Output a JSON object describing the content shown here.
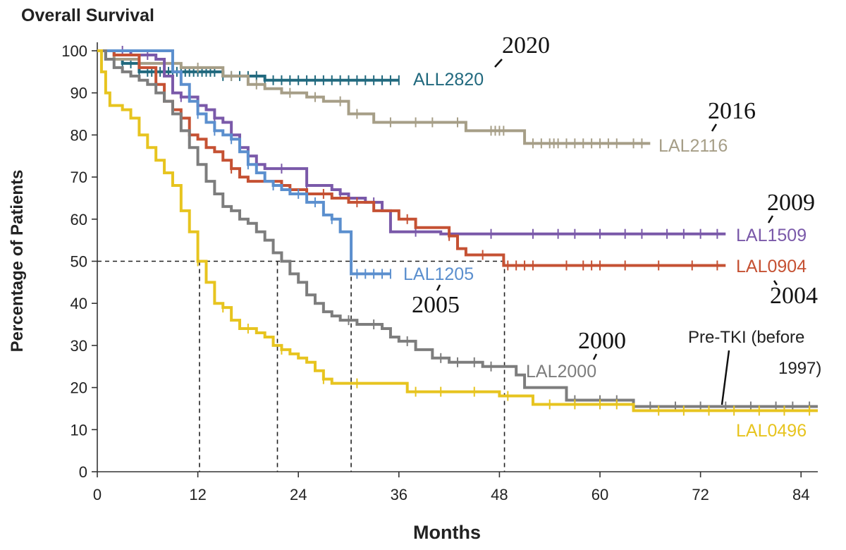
{
  "chart_data": {
    "type": "line",
    "title": "Overall Survival",
    "xlabel": "Months",
    "ylabel": "Percentage of Patients",
    "xlim": [
      0,
      86
    ],
    "ylim": [
      0,
      100
    ],
    "xticks": [
      0,
      12,
      24,
      36,
      48,
      60,
      72,
      84
    ],
    "yticks": [
      0,
      10,
      20,
      30,
      40,
      50,
      60,
      70,
      80,
      90,
      100
    ],
    "median_reference_line": {
      "y": 50,
      "x_values": [
        12.2,
        21.5,
        30.3,
        48.6
      ]
    },
    "series": [
      {
        "name": "ALL2820",
        "year_label": "2020",
        "color": "#21697e",
        "points": [
          [
            0,
            100
          ],
          [
            1,
            98
          ],
          [
            3,
            97
          ],
          [
            5,
            95
          ],
          [
            10,
            95
          ],
          [
            15,
            94
          ],
          [
            20,
            93
          ],
          [
            36,
            93
          ]
        ],
        "censor_x": [
          2,
          3,
          4,
          5,
          6,
          6.5,
          7,
          7.5,
          8,
          8.5,
          9,
          9.5,
          10,
          10.5,
          11,
          11.5,
          12,
          12.5,
          13,
          13.5,
          14,
          15,
          16,
          17,
          18,
          19,
          20,
          21,
          22,
          23,
          24,
          25,
          26,
          27,
          28,
          29,
          30,
          31,
          32,
          33,
          34,
          35,
          36
        ]
      },
      {
        "name": "LAL2116",
        "year_label": "2016",
        "color": "#a69e87",
        "points": [
          [
            0,
            100
          ],
          [
            2,
            98
          ],
          [
            5,
            97
          ],
          [
            10,
            96
          ],
          [
            15,
            94
          ],
          [
            18,
            92
          ],
          [
            20,
            91
          ],
          [
            22,
            90
          ],
          [
            25,
            89
          ],
          [
            27,
            88
          ],
          [
            30,
            85
          ],
          [
            33,
            85
          ],
          [
            33,
            83
          ],
          [
            44,
            83
          ],
          [
            44,
            81
          ],
          [
            51,
            81
          ],
          [
            51,
            78
          ],
          [
            66,
            78
          ]
        ],
        "censor_x": [
          5,
          8,
          12,
          16,
          19,
          23,
          26,
          29,
          31,
          35,
          38,
          40,
          43,
          47,
          47.5,
          48,
          48.5,
          52,
          53,
          54,
          54.5,
          55,
          56,
          57,
          58,
          59,
          60,
          61,
          62,
          64,
          65
        ]
      },
      {
        "name": "LAL1509",
        "year_label": "2009",
        "color": "#7a59a9",
        "points": [
          [
            0,
            100
          ],
          [
            2,
            100
          ],
          [
            4,
            99
          ],
          [
            7,
            98
          ],
          [
            8,
            94
          ],
          [
            9,
            90
          ],
          [
            10,
            89
          ],
          [
            12,
            87
          ],
          [
            13,
            86
          ],
          [
            14,
            84
          ],
          [
            15,
            83
          ],
          [
            16,
            80
          ],
          [
            17,
            77
          ],
          [
            18,
            75
          ],
          [
            19,
            73
          ],
          [
            20,
            72
          ],
          [
            24,
            72
          ],
          [
            25,
            68
          ],
          [
            28,
            67
          ],
          [
            29,
            66
          ],
          [
            30,
            65
          ],
          [
            32,
            64
          ],
          [
            34,
            62
          ],
          [
            35,
            57
          ],
          [
            41,
            57
          ],
          [
            41,
            56.5
          ],
          [
            75,
            56.5
          ]
        ],
        "censor_x": [
          3,
          6,
          10,
          14,
          18,
          22,
          25,
          29,
          33,
          38,
          42,
          47,
          52,
          55,
          57,
          60,
          63,
          65,
          68,
          70,
          72,
          74
        ]
      },
      {
        "name": "LAL0904",
        "year_label": "2004",
        "color": "#c55133",
        "points": [
          [
            0,
            100
          ],
          [
            2,
            99
          ],
          [
            5,
            96
          ],
          [
            7,
            92
          ],
          [
            8,
            88
          ],
          [
            9,
            86
          ],
          [
            10,
            84
          ],
          [
            11,
            80
          ],
          [
            12,
            79
          ],
          [
            13,
            77
          ],
          [
            14,
            76
          ],
          [
            15,
            74
          ],
          [
            16,
            72
          ],
          [
            17,
            70
          ],
          [
            18,
            69
          ],
          [
            21,
            69
          ],
          [
            22,
            68
          ],
          [
            23,
            67
          ],
          [
            25,
            66
          ],
          [
            28,
            65
          ],
          [
            30,
            64
          ],
          [
            33,
            62
          ],
          [
            36,
            60
          ],
          [
            38,
            58
          ],
          [
            42,
            56
          ],
          [
            43,
            53
          ],
          [
            44,
            51.5
          ],
          [
            48.5,
            51.5
          ],
          [
            48.5,
            49
          ],
          [
            75,
            49
          ]
        ],
        "censor_x": [
          11,
          16,
          23,
          27,
          31,
          37,
          42,
          46,
          49,
          50,
          51,
          52,
          56,
          58,
          59,
          60,
          63,
          67,
          71,
          74
        ]
      },
      {
        "name": "LAL1205",
        "year_label": "2005",
        "color": "#5b8fce",
        "points": [
          [
            0,
            100
          ],
          [
            1,
            100
          ],
          [
            8,
            100
          ],
          [
            9,
            95
          ],
          [
            10,
            92
          ],
          [
            11,
            88
          ],
          [
            12,
            85
          ],
          [
            13,
            83
          ],
          [
            14,
            81
          ],
          [
            15,
            80
          ],
          [
            16,
            79
          ],
          [
            17,
            76
          ],
          [
            18,
            73
          ],
          [
            19,
            71
          ],
          [
            20,
            69
          ],
          [
            21,
            68
          ],
          [
            22,
            67
          ],
          [
            23,
            66
          ],
          [
            25,
            64
          ],
          [
            27,
            61
          ],
          [
            28,
            60
          ],
          [
            29,
            57
          ],
          [
            30,
            57
          ],
          [
            30.3,
            47
          ],
          [
            35,
            47
          ]
        ],
        "censor_x": [
          12,
          14,
          16,
          18,
          21,
          24,
          26,
          28,
          31,
          32,
          33,
          34,
          35
        ]
      },
      {
        "name": "LAL2000",
        "year_label": "2000",
        "color": "#7d7d7d",
        "points": [
          [
            0,
            100
          ],
          [
            1,
            98
          ],
          [
            2,
            96
          ],
          [
            3,
            95
          ],
          [
            4,
            94
          ],
          [
            5,
            93
          ],
          [
            6,
            92
          ],
          [
            7,
            90
          ],
          [
            8,
            88
          ],
          [
            9,
            85
          ],
          [
            10,
            81
          ],
          [
            11,
            77
          ],
          [
            12,
            73
          ],
          [
            13,
            69
          ],
          [
            14,
            66
          ],
          [
            15,
            63
          ],
          [
            16,
            62
          ],
          [
            17,
            60
          ],
          [
            18,
            59
          ],
          [
            19,
            57
          ],
          [
            20,
            55
          ],
          [
            21,
            52
          ],
          [
            22,
            50
          ],
          [
            23,
            47
          ],
          [
            24,
            45
          ],
          [
            25,
            42
          ],
          [
            26,
            40
          ],
          [
            27,
            38
          ],
          [
            28,
            37
          ],
          [
            29,
            36
          ],
          [
            30,
            36
          ],
          [
            31,
            35
          ],
          [
            33,
            35
          ],
          [
            34,
            34
          ],
          [
            35,
            32
          ],
          [
            36,
            31
          ],
          [
            38,
            29
          ],
          [
            40,
            27
          ],
          [
            42,
            26
          ],
          [
            45,
            26
          ],
          [
            46,
            25
          ],
          [
            49,
            25
          ],
          [
            50,
            23
          ],
          [
            51,
            20
          ],
          [
            56,
            20
          ],
          [
            56,
            17
          ],
          [
            63,
            17
          ],
          [
            64,
            15.5
          ],
          [
            86,
            15.5
          ]
        ],
        "censor_x": [
          30,
          33,
          37,
          41,
          43,
          45,
          47,
          57,
          60,
          62,
          66,
          69,
          72,
          75,
          78,
          81,
          83,
          85
        ]
      },
      {
        "name": "LAL0496",
        "year_label": "Pre-TKI (before 1997)",
        "color": "#e7c41f",
        "points": [
          [
            0,
            100
          ],
          [
            0.5,
            95
          ],
          [
            1,
            90
          ],
          [
            1.5,
            87
          ],
          [
            3,
            86
          ],
          [
            4,
            84
          ],
          [
            5,
            80
          ],
          [
            6,
            77
          ],
          [
            7,
            74
          ],
          [
            8,
            71
          ],
          [
            9,
            68
          ],
          [
            10,
            62
          ],
          [
            11,
            57
          ],
          [
            12,
            50
          ],
          [
            13,
            45
          ],
          [
            14,
            40
          ],
          [
            15,
            39
          ],
          [
            16,
            36
          ],
          [
            17,
            34
          ],
          [
            19,
            33
          ],
          [
            20,
            32
          ],
          [
            21,
            30
          ],
          [
            22,
            29
          ],
          [
            23,
            28
          ],
          [
            24,
            27
          ],
          [
            25,
            26
          ],
          [
            26,
            24
          ],
          [
            27,
            22
          ],
          [
            28,
            21
          ],
          [
            37,
            21
          ],
          [
            37,
            19
          ],
          [
            48,
            19
          ],
          [
            48,
            18
          ],
          [
            52,
            18
          ],
          [
            52,
            16
          ],
          [
            64,
            16
          ],
          [
            64,
            14.5
          ],
          [
            86,
            14.5
          ]
        ],
        "censor_x": [
          12,
          15,
          18,
          22,
          27,
          31,
          38,
          41,
          45,
          49,
          54,
          57,
          60,
          62,
          67,
          70,
          73,
          76,
          79,
          82,
          85
        ]
      }
    ]
  },
  "labels": {
    "series_all2820": "ALL2820",
    "series_lal2116": "LAL2116",
    "series_lal1509": "LAL1509",
    "series_lal0904": "LAL0904",
    "series_lal1205": "LAL1205",
    "series_lal2000": "LAL2000",
    "series_lal0496": "LAL0496",
    "year_2020": "2020",
    "year_2016": "2016",
    "year_2009": "2009",
    "year_2004": "2004",
    "year_2005": "2005",
    "year_2000": "2000",
    "pretki_line1": "Pre-TKI (before",
    "pretki_line2": "1997)"
  },
  "colors": {
    "axis": "#333333",
    "reference": "#222222",
    "all2820": "#21697e",
    "lal2116": "#a69e87",
    "lal1509": "#7a59a9",
    "lal0904": "#c55133",
    "lal1205": "#5b8fce",
    "lal2000": "#7d7d7d",
    "lal0496": "#e7c41f"
  }
}
